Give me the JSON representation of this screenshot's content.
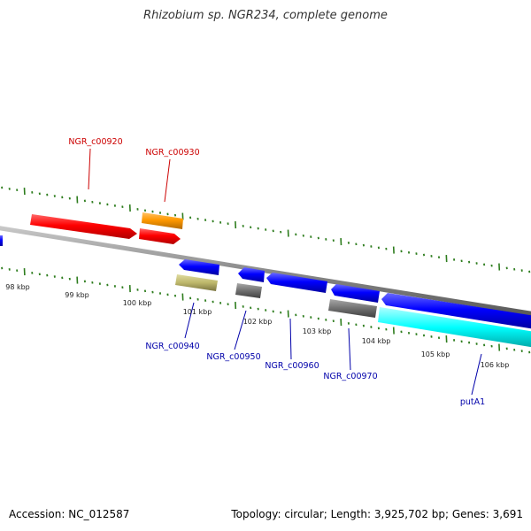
{
  "title": "Rhizobium sp. NGR234, complete genome",
  "footer": {
    "accession": "Accession: NC_012587",
    "summary": "Topology: circular; Length: 3,925,702 bp; Genes: 3,691"
  },
  "colors": {
    "backbone": "#8a8a8a",
    "tick": "#2e7d1e",
    "forward_label": "#cc0000",
    "reverse_label": "#0000aa",
    "red": "#ff0000",
    "orange": "#ff9900",
    "blue": "#0000ff",
    "khaki": "#bdb76b",
    "gray": "#707070",
    "cyan": "#00ffff"
  },
  "tick_labels": [
    "98 kbp",
    "99 kbp",
    "100 kbp",
    "101 kbp",
    "102 kbp",
    "103 kbp",
    "104 kbp",
    "105 kbp",
    "106 kbp"
  ],
  "gene_labels": {
    "forward": [
      "NGR_c00920",
      "NGR_c00930"
    ],
    "reverse": [
      "NGR_c00940",
      "NGR_c00950",
      "NGR_c00960",
      "NGR_c00970",
      "putA1"
    ]
  },
  "features": [
    {
      "label": "NGR_c00920",
      "strand": "forward",
      "color": "red"
    },
    {
      "label": "NGR_c00930",
      "strand": "forward",
      "color": "orange"
    },
    {
      "label": "",
      "strand": "forward",
      "color": "red"
    },
    {
      "label": "NGR_c00940",
      "strand": "reverse",
      "color": "blue"
    },
    {
      "label": "",
      "strand": "reverse",
      "color": "khaki"
    },
    {
      "label": "NGR_c00950",
      "strand": "reverse",
      "color": "blue"
    },
    {
      "label": "",
      "strand": "reverse",
      "color": "gray"
    },
    {
      "label": "NGR_c00960",
      "strand": "reverse",
      "color": "blue"
    },
    {
      "label": "NGR_c00970",
      "strand": "reverse",
      "color": "blue"
    },
    {
      "label": "",
      "strand": "reverse",
      "color": "gray"
    },
    {
      "label": "putA1",
      "strand": "reverse",
      "color": "blue"
    },
    {
      "label": "",
      "strand": "reverse",
      "color": "cyan"
    }
  ]
}
